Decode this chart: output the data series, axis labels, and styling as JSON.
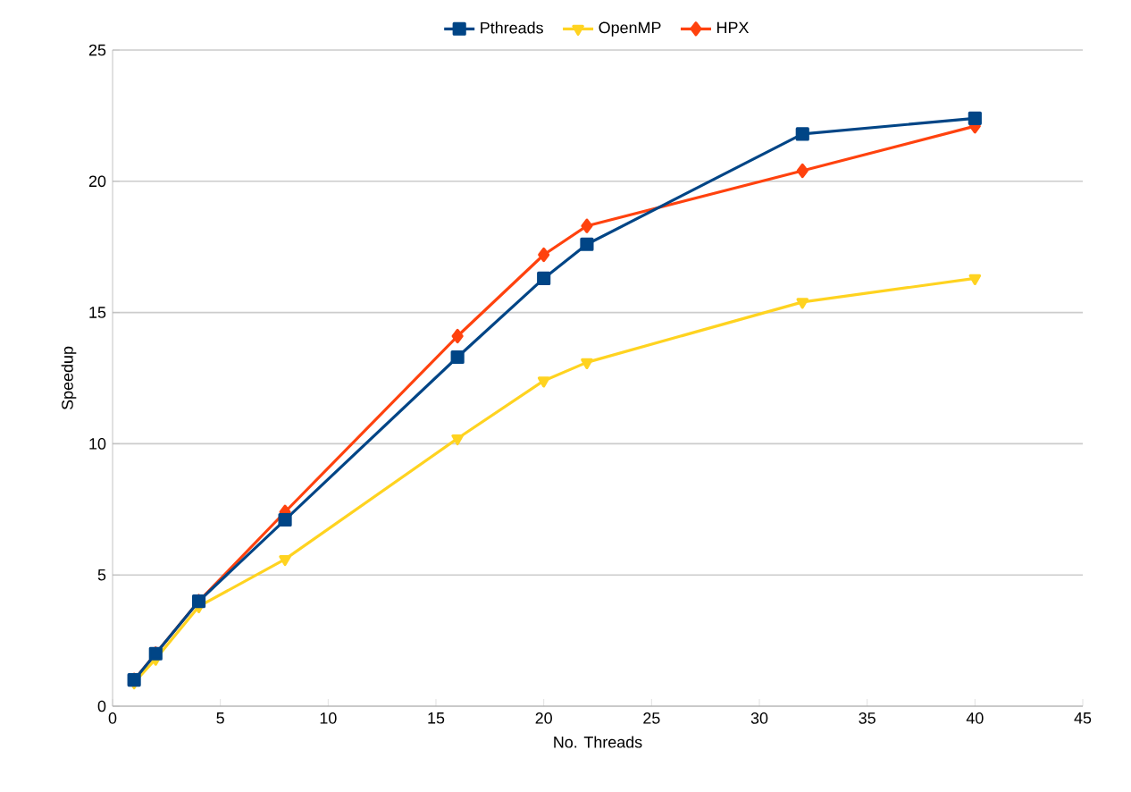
{
  "chart_data": {
    "type": "line",
    "xlabel": "No. Threads",
    "ylabel": "Speedup",
    "x": [
      1,
      2,
      4,
      8,
      16,
      20,
      22,
      32,
      40
    ],
    "series": [
      {
        "name": "Pthreads",
        "color": "#004586",
        "marker": "square",
        "values": [
          1.0,
          2.0,
          4.0,
          7.1,
          13.3,
          16.3,
          17.6,
          21.8,
          22.4
        ]
      },
      {
        "name": "OpenMP",
        "color": "#ffd320",
        "marker": "triangle",
        "values": [
          0.9,
          1.8,
          3.8,
          5.6,
          10.2,
          12.4,
          13.1,
          15.4,
          16.3
        ]
      },
      {
        "name": "HPX",
        "color": "#ff420e",
        "marker": "diamond",
        "values": [
          1.0,
          2.0,
          4.0,
          7.4,
          14.1,
          17.2,
          18.3,
          20.4,
          22.1
        ]
      }
    ],
    "xlim": [
      0,
      45
    ],
    "xticks": [
      0,
      5,
      10,
      15,
      20,
      25,
      30,
      35,
      40,
      45
    ],
    "ylim": [
      0,
      25
    ],
    "yticks": [
      0,
      5,
      10,
      15,
      20,
      25
    ],
    "grid": "y",
    "legend": "top",
    "line_style": "solid"
  }
}
